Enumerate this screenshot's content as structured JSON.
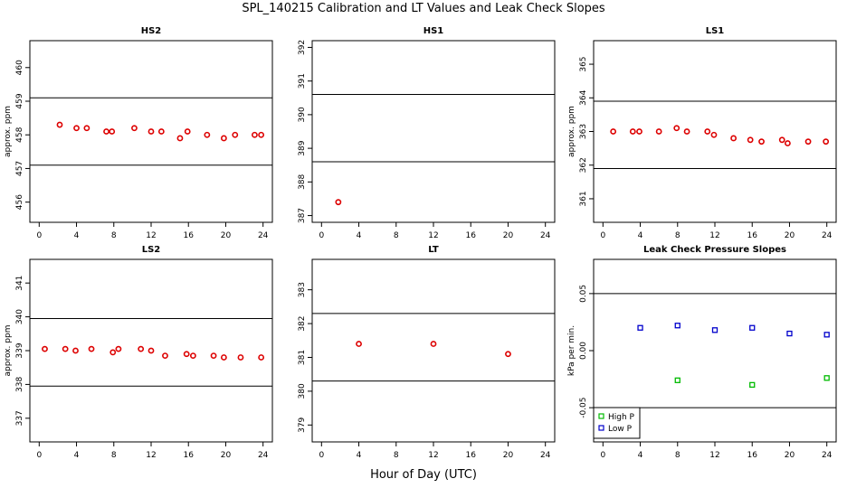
{
  "title": "SPL_140215  Calibration and LT Values and Leak Check Slopes",
  "xlabel": "Hour of Day (UTC)",
  "chart_data": [
    {
      "type": "scatter",
      "title": "HS2",
      "ylabel": "approx. ppm",
      "xlim": [
        -1,
        25
      ],
      "ylim": [
        455.4,
        460.8
      ],
      "xticks": [
        "0",
        "4",
        "8",
        "12",
        "16",
        "20",
        "24"
      ],
      "yticks": [
        "456",
        "457",
        "458",
        "459",
        "460"
      ],
      "hlines": [
        457.1,
        459.1
      ],
      "series": [
        {
          "color": "#dd0000",
          "x": [
            2.2,
            4.0,
            5.1,
            7.2,
            7.8,
            10.2,
            12.0,
            13.1,
            15.1,
            15.9,
            18.0,
            19.8,
            21.0,
            23.1,
            23.8
          ],
          "y": [
            458.3,
            458.2,
            458.2,
            458.1,
            458.1,
            458.2,
            458.1,
            458.1,
            457.9,
            458.1,
            458.0,
            457.9,
            458.0,
            458.0,
            458.0
          ]
        }
      ]
    },
    {
      "type": "scatter",
      "title": "HS1",
      "ylabel": "",
      "xlim": [
        -1,
        25
      ],
      "ylim": [
        386.8,
        392.2
      ],
      "xticks": [
        "0",
        "4",
        "8",
        "12",
        "16",
        "20",
        "24"
      ],
      "yticks": [
        "387",
        "388",
        "389",
        "390",
        "391",
        "392"
      ],
      "hlines": [
        388.6,
        390.6
      ],
      "series": [
        {
          "color": "#dd0000",
          "x": [
            1.8
          ],
          "y": [
            387.4
          ]
        }
      ]
    },
    {
      "type": "scatter",
      "title": "LS1",
      "ylabel": "approx. ppm",
      "xlim": [
        -1,
        25
      ],
      "ylim": [
        360.3,
        365.7
      ],
      "xticks": [
        "0",
        "4",
        "8",
        "12",
        "16",
        "20",
        "24"
      ],
      "yticks": [
        "361",
        "362",
        "363",
        "364",
        "365"
      ],
      "hlines": [
        361.9,
        363.9
      ],
      "series": [
        {
          "color": "#dd0000",
          "x": [
            1.1,
            3.2,
            3.9,
            6.0,
            7.9,
            9.0,
            11.2,
            11.9,
            14.0,
            15.8,
            17.0,
            19.2,
            19.8,
            22.0,
            23.9
          ],
          "y": [
            363.0,
            363.0,
            363.0,
            363.0,
            363.1,
            363.0,
            363.0,
            362.9,
            362.8,
            362.75,
            362.7,
            362.75,
            362.65,
            362.7,
            362.7
          ]
        }
      ]
    },
    {
      "type": "scatter",
      "title": "LS2",
      "ylabel": "approx. ppm",
      "xlim": [
        -1,
        25
      ],
      "ylim": [
        336.3,
        341.7
      ],
      "xticks": [
        "0",
        "4",
        "8",
        "12",
        "16",
        "20",
        "24"
      ],
      "yticks": [
        "337",
        "338",
        "339",
        "340",
        "341"
      ],
      "hlines": [
        337.95,
        339.95
      ],
      "series": [
        {
          "color": "#dd0000",
          "x": [
            0.6,
            2.8,
            3.9,
            5.6,
            7.9,
            8.5,
            10.9,
            12.0,
            13.5,
            15.8,
            16.5,
            18.7,
            19.8,
            21.6,
            23.8
          ],
          "y": [
            339.05,
            339.05,
            339.0,
            339.05,
            338.95,
            339.05,
            339.05,
            339.0,
            338.85,
            338.9,
            338.85,
            338.85,
            338.8,
            338.8,
            338.8
          ]
        }
      ]
    },
    {
      "type": "scatter",
      "title": "LT",
      "ylabel": "",
      "xlim": [
        -1,
        25
      ],
      "ylim": [
        378.5,
        383.9
      ],
      "xticks": [
        "0",
        "4",
        "8",
        "12",
        "16",
        "20",
        "24"
      ],
      "yticks": [
        "379",
        "380",
        "381",
        "382",
        "383"
      ],
      "hlines": [
        380.3,
        382.3
      ],
      "series": [
        {
          "color": "#dd0000",
          "x": [
            4.0,
            12.0,
            20.0
          ],
          "y": [
            381.4,
            381.4,
            381.1
          ]
        }
      ]
    },
    {
      "type": "scatter",
      "title": "Leak Check Pressure Slopes",
      "ylabel": "kPa per min.",
      "xlim": [
        -1,
        25
      ],
      "ylim": [
        -0.08,
        0.08
      ],
      "xticks": [
        "0",
        "4",
        "8",
        "12",
        "16",
        "20",
        "24"
      ],
      "yticks": [
        "-0.05",
        "0.00",
        "0.05"
      ],
      "hlines": [
        -0.05,
        0.05
      ],
      "legend": "bottom-left",
      "series": [
        {
          "name": "High P",
          "color": "#00bb00",
          "x": [
            8,
            16,
            24
          ],
          "y": [
            -0.026,
            -0.03,
            -0.024
          ]
        },
        {
          "name": "Low P",
          "color": "#0000cc",
          "x": [
            4,
            8,
            12,
            16,
            20,
            24
          ],
          "y": [
            0.02,
            0.022,
            0.018,
            0.02,
            0.015,
            0.014
          ]
        }
      ]
    }
  ]
}
